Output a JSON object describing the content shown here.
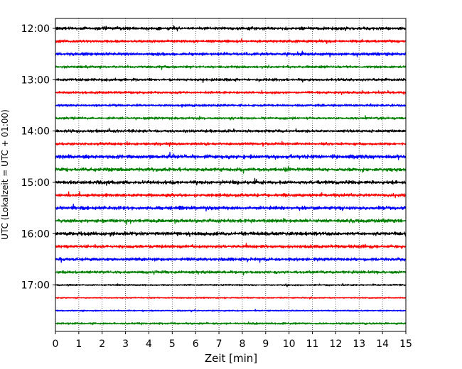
{
  "chart_data": {
    "type": "line",
    "title": "",
    "xlabel": "Zeit  [min]",
    "ylabel": "UTC (Lokalzeit = UTC + 01:00)",
    "xlim": [
      0,
      15
    ],
    "x_ticks": [
      0,
      1,
      2,
      3,
      4,
      5,
      6,
      7,
      8,
      9,
      10,
      11,
      12,
      13,
      14,
      15
    ],
    "x_tick_labels": [
      "0",
      "1",
      "2",
      "3",
      "4",
      "5",
      "6",
      "7",
      "8",
      "9",
      "10",
      "11",
      "12",
      "13",
      "14",
      "15"
    ],
    "y_tick_labels": [
      "12:00",
      "13:00",
      "14:00",
      "15:00",
      "16:00",
      "17:00"
    ],
    "grid": "vertical dotted lines at each minute",
    "legend": "none",
    "trace_interval_minutes": 15,
    "trace_color_cycle": [
      "#000000",
      "#ff0000",
      "#0000ff",
      "#008000"
    ],
    "traces": [
      {
        "start": "12:00",
        "amplitude": 0.8
      },
      {
        "start": "12:15",
        "amplitude": 0.7
      },
      {
        "start": "12:30",
        "amplitude": 0.8
      },
      {
        "start": "12:45",
        "amplitude": 0.6
      },
      {
        "start": "13:00",
        "amplitude": 0.7
      },
      {
        "start": "13:15",
        "amplitude": 0.6
      },
      {
        "start": "13:30",
        "amplitude": 0.6
      },
      {
        "start": "13:45",
        "amplitude": 0.6
      },
      {
        "start": "14:00",
        "amplitude": 0.7
      },
      {
        "start": "14:15",
        "amplitude": 0.7
      },
      {
        "start": "14:30",
        "amplitude": 1.0
      },
      {
        "start": "14:45",
        "amplitude": 0.9
      },
      {
        "start": "15:00",
        "amplitude": 0.9
      },
      {
        "start": "15:15",
        "amplitude": 0.8
      },
      {
        "start": "15:30",
        "amplitude": 0.9
      },
      {
        "start": "15:45",
        "amplitude": 0.9
      },
      {
        "start": "16:00",
        "amplitude": 0.9
      },
      {
        "start": "16:15",
        "amplitude": 0.8
      },
      {
        "start": "16:30",
        "amplitude": 0.8
      },
      {
        "start": "16:45",
        "amplitude": 0.7
      },
      {
        "start": "17:00",
        "amplitude": 0.4
      },
      {
        "start": "17:15",
        "amplitude": 0.3
      },
      {
        "start": "17:30",
        "amplitude": 0.3
      },
      {
        "start": "17:45",
        "amplitude": 0.5
      }
    ]
  }
}
